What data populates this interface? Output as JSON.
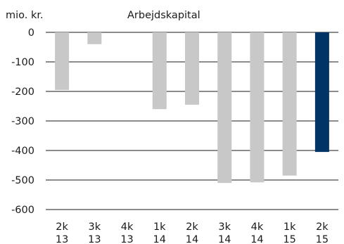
{
  "chart_data": {
    "type": "bar",
    "title": "Arbejdskapital",
    "ylabel": "mio. kr.",
    "xlabel": "",
    "categories": [
      [
        "2k",
        "13"
      ],
      [
        "3k",
        "13"
      ],
      [
        "4k",
        "13"
      ],
      [
        "1k",
        "14"
      ],
      [
        "2k",
        "14"
      ],
      [
        "3k",
        "14"
      ],
      [
        "4k",
        "14"
      ],
      [
        "1k",
        "15"
      ],
      [
        "2k",
        "15"
      ]
    ],
    "values": [
      -195,
      -40,
      0,
      -260,
      -245,
      -510,
      -508,
      -485,
      -405
    ],
    "ylim": [
      -600,
      0
    ],
    "yticks": [
      0,
      -100,
      -200,
      -300,
      -400,
      -500,
      -600
    ],
    "grid": true,
    "highlight_index": 8,
    "colors": {
      "bar": "#c8c8c8",
      "highlight": "#003366",
      "grid": "#1a1a1a",
      "text": "#1a1a1a"
    }
  }
}
